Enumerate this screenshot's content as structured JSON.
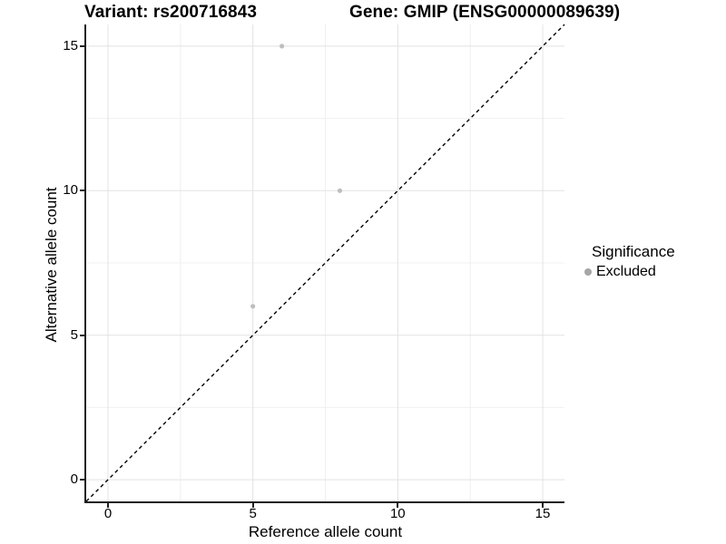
{
  "colors": {
    "background": "#ffffff",
    "axis_line": "#1f1f1f",
    "tick_mark": "#1f1f1f",
    "grid_major": "#e2e2e2",
    "grid_minor": "#f0f0f0",
    "point": "#bebebe",
    "legend_marker": "#a6a6a6",
    "reference_line": "#000000",
    "text": "#000000"
  },
  "chart_data": {
    "type": "scatter",
    "title_left": "Variant: rs200716843",
    "title_right": "Gene: GMIP (ENSG00000089639)",
    "xlabel": "Reference allele count",
    "ylabel": "Alternative allele count",
    "x_ticks": [
      0,
      5,
      10,
      15
    ],
    "y_ticks": [
      0,
      5,
      10,
      15
    ],
    "x_minor": [
      2.5,
      7.5,
      12.5
    ],
    "y_minor": [
      2.5,
      7.5,
      12.5
    ],
    "xlim": [
      -0.75,
      15.75
    ],
    "ylim": [
      -0.75,
      15.75
    ],
    "grid": true,
    "points": [
      {
        "x": 6,
        "y": 15,
        "series": "Excluded"
      },
      {
        "x": 8,
        "y": 10,
        "series": "Excluded"
      },
      {
        "x": 5,
        "y": 6,
        "series": "Excluded"
      }
    ],
    "point_color": "#bebebe",
    "point_radius_px": 2.6,
    "reference_line": {
      "type": "identity",
      "equation": "y = x",
      "style": "dashed",
      "color": "#000000"
    },
    "legend": {
      "title": "Significance",
      "position": "right",
      "entries": [
        {
          "label": "Excluded",
          "marker": "circle",
          "color": "#a6a6a6"
        }
      ]
    }
  }
}
